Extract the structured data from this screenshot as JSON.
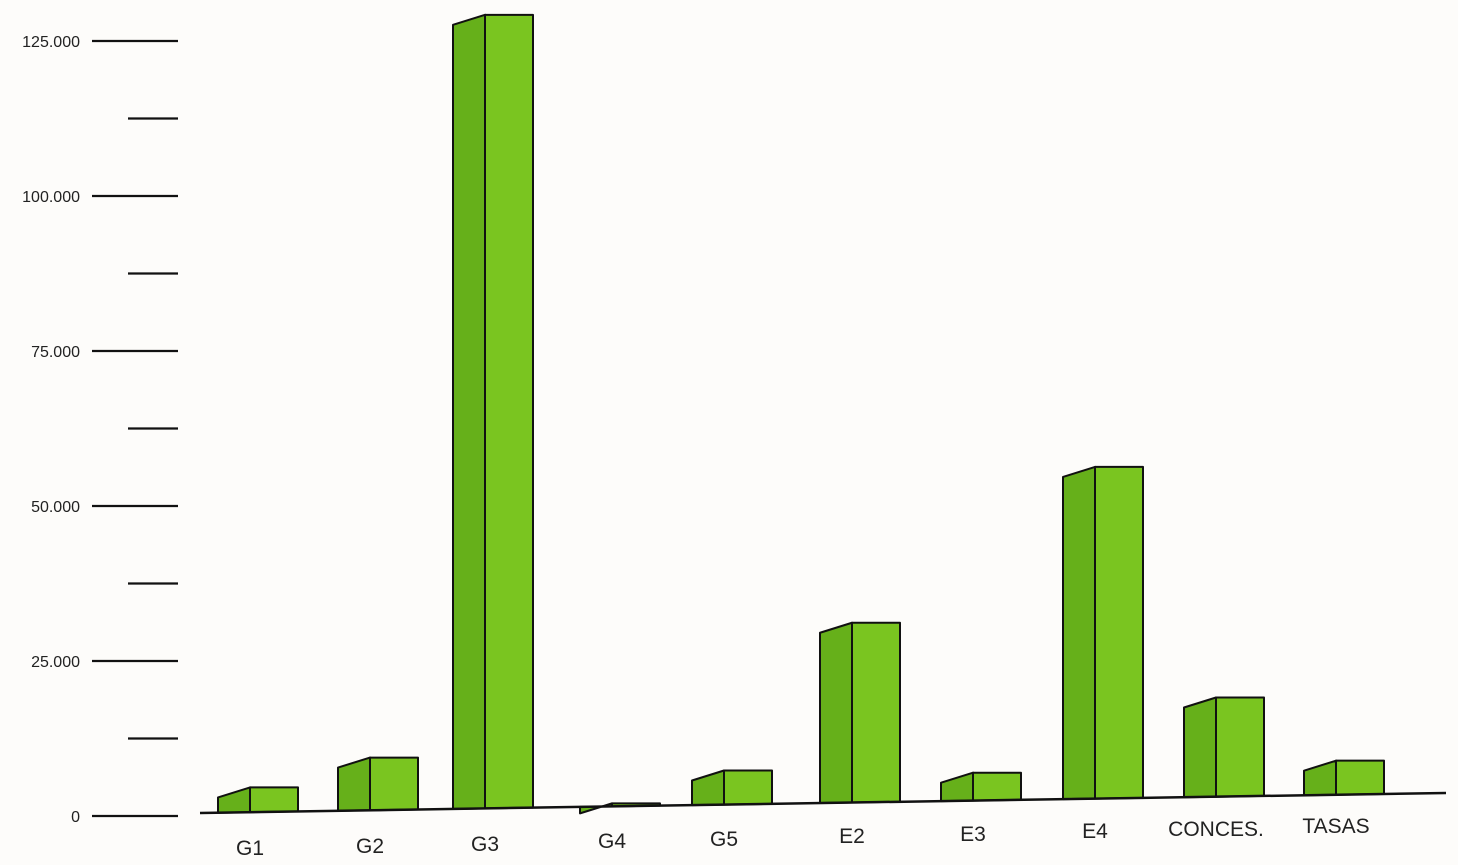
{
  "chart_data": {
    "type": "bar",
    "categories": [
      "G1",
      "G2",
      "G3",
      "G4",
      "G5",
      "E2",
      "E3",
      "E4",
      "CONCES.",
      "TASAS"
    ],
    "values": [
      4000,
      8500,
      128000,
      400,
      5500,
      29000,
      4500,
      53500,
      16000,
      5500
    ],
    "ylim": [
      0,
      125000
    ],
    "yticks": [
      "0",
      "25.000",
      "50.000",
      "75.000",
      "100.000",
      "125.000"
    ],
    "minor_ticks": true,
    "grid": false,
    "legend": "none",
    "colors": {
      "bar_front": "#7ac520",
      "bar_side": "#66b01a",
      "outline": "#111111",
      "background": "#fdfcfa"
    }
  }
}
